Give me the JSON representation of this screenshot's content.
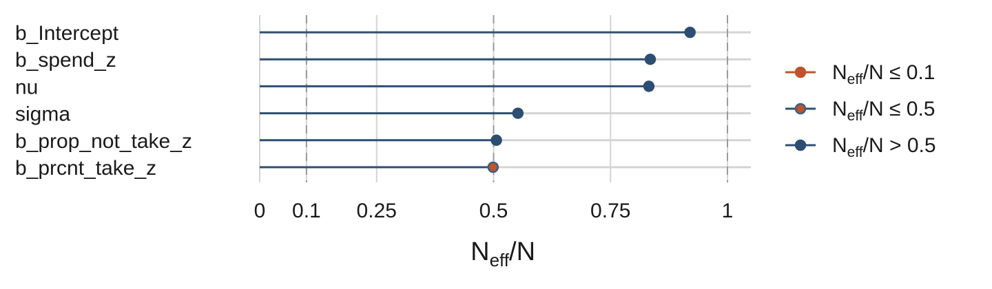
{
  "chart_data": {
    "type": "scatter",
    "subtype": "lollipop",
    "parameters": [
      "b_Intercept",
      "b_spend_z",
      "nu",
      "sigma",
      "b_prop_not_take_z",
      "b_prcnt_take_z"
    ],
    "values": [
      0.92,
      0.835,
      0.832,
      0.552,
      0.506,
      0.499
    ],
    "point_category": [
      "gt0.5",
      "gt0.5",
      "gt0.5",
      "gt0.5",
      "gt0.5",
      "le0.5"
    ],
    "xlim": [
      0,
      1.05
    ],
    "xticks": [
      0,
      0.1,
      0.25,
      0.5,
      0.75,
      1
    ],
    "xtick_labels": [
      "0",
      "0.1",
      "0.25",
      "0.5",
      "0.75",
      "1"
    ],
    "xlabel": {
      "main": "N",
      "sub": "eff",
      "rest": "/N"
    },
    "legend": [
      {
        "key": "le0.1",
        "prefix": "N",
        "sub": "eff",
        "suffix": "/N ≤ 0.1",
        "line_color": "#c0532b",
        "fill": "#c0532b",
        "stroke": "#c0532b"
      },
      {
        "key": "le0.5",
        "prefix": "N",
        "sub": "eff",
        "suffix": "/N ≤ 0.5",
        "line_color": "#2f4f73",
        "fill": "#c0532b",
        "stroke": "#3d5f82"
      },
      {
        "key": "gt0.5",
        "prefix": "N",
        "sub": "eff",
        "suffix": "/N > 0.5",
        "line_color": "#2f4f73",
        "fill": "#2c4e72",
        "stroke": "#2c4e72"
      }
    ],
    "colors": {
      "line": "#2f4f73",
      "grid": "#d4d4d4",
      "dashed_ref": "#9a9a9a"
    },
    "grid": true,
    "legend_position": "right"
  }
}
